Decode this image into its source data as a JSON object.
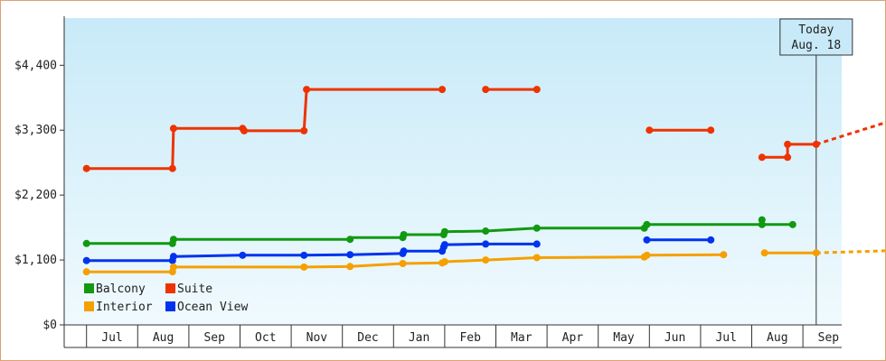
{
  "chart_data": {
    "type": "line",
    "x_axis": {
      "labels": [
        "Jul",
        "Aug",
        "Sep",
        "Oct",
        "Nov",
        "Dec",
        "Jan",
        "Feb",
        "Mar",
        "Apr",
        "May",
        "Jun",
        "Jul",
        "Aug",
        "Sep"
      ]
    },
    "y_axis": {
      "ticks": [
        {
          "value": 0,
          "label": "$0"
        },
        {
          "value": 1100,
          "label": "$1,100"
        },
        {
          "value": 2200,
          "label": "$2,200"
        },
        {
          "value": 3300,
          "label": "$3,300"
        },
        {
          "value": 4400,
          "label": "$4,400"
        }
      ],
      "ylim": [
        0,
        5200
      ]
    },
    "today": {
      "line1": "Today",
      "line2": "Aug. 18",
      "x": 13.76
    },
    "colors": {
      "Balcony": "#119911",
      "Suite": "#ee3300",
      "Interior": "#f5a000",
      "Ocean View": "#0033ee"
    },
    "legend": [
      "Balcony",
      "Suite",
      "Interior",
      "Ocean View"
    ],
    "series": [
      {
        "name": "Suite",
        "segments": [
          [
            [
              -0.5,
              2650
            ],
            [
              1.18,
              2650
            ],
            [
              1.2,
              3330
            ],
            [
              2.55,
              3330
            ],
            [
              2.58,
              3290
            ],
            [
              3.75,
              3290
            ],
            [
              3.8,
              3990
            ],
            [
              6.45,
              3990
            ]
          ],
          [
            [
              7.3,
              3990
            ],
            [
              8.3,
              3990
            ]
          ],
          [
            [
              10.5,
              3300
            ],
            [
              11.7,
              3300
            ]
          ],
          [
            [
              12.7,
              2840
            ],
            [
              13.2,
              2840
            ],
            [
              13.2,
              3060
            ],
            [
              13.76,
              3060
            ]
          ]
        ],
        "markers": [
          [
            -0.5,
            2650
          ],
          [
            1.18,
            2650
          ],
          [
            1.2,
            3330
          ],
          [
            2.55,
            3330
          ],
          [
            2.58,
            3290
          ],
          [
            3.75,
            3290
          ],
          [
            3.8,
            3990
          ],
          [
            6.45,
            3990
          ],
          [
            7.3,
            3990
          ],
          [
            8.3,
            3990
          ],
          [
            10.5,
            3300
          ],
          [
            11.7,
            3300
          ],
          [
            12.7,
            2840
          ],
          [
            13.2,
            2840
          ],
          [
            13.2,
            3060
          ],
          [
            13.76,
            3060
          ]
        ],
        "projection": [
          [
            13.76,
            3060
          ],
          [
            15.3,
            3480
          ]
        ]
      },
      {
        "name": "Balcony",
        "segments": [
          [
            [
              -0.5,
              1380
            ],
            [
              1.18,
              1380
            ],
            [
              1.2,
              1450
            ],
            [
              4.65,
              1450
            ],
            [
              4.67,
              1480
            ],
            [
              5.68,
              1480
            ],
            [
              5.7,
              1530
            ],
            [
              6.48,
              1530
            ],
            [
              6.5,
              1580
            ],
            [
              7.3,
              1590
            ],
            [
              8.3,
              1640
            ],
            [
              10.4,
              1640
            ],
            [
              10.45,
              1700
            ],
            [
              12.7,
              1700
            ],
            [
              12.7,
              1780
            ],
            [
              12.75,
              1700
            ],
            [
              13.3,
              1700
            ]
          ]
        ],
        "markers": [
          [
            -0.5,
            1380
          ],
          [
            1.18,
            1380
          ],
          [
            1.2,
            1450
          ],
          [
            4.65,
            1450
          ],
          [
            5.68,
            1480
          ],
          [
            5.7,
            1530
          ],
          [
            6.48,
            1530
          ],
          [
            6.5,
            1580
          ],
          [
            7.3,
            1590
          ],
          [
            8.3,
            1640
          ],
          [
            10.4,
            1640
          ],
          [
            10.45,
            1700
          ],
          [
            12.7,
            1700
          ],
          [
            12.7,
            1780
          ],
          [
            13.3,
            1700
          ]
        ]
      },
      {
        "name": "Ocean View",
        "segments": [
          [
            [
              -0.5,
              1090
            ],
            [
              1.18,
              1090
            ],
            [
              1.2,
              1160
            ],
            [
              2.55,
              1180
            ],
            [
              3.75,
              1180
            ],
            [
              4.65,
              1190
            ],
            [
              5.68,
              1210
            ],
            [
              5.7,
              1250
            ],
            [
              6.45,
              1250
            ],
            [
              6.48,
              1320
            ],
            [
              6.5,
              1360
            ],
            [
              7.3,
              1370
            ],
            [
              8.3,
              1370
            ]
          ],
          [
            [
              10.45,
              1440
            ],
            [
              11.7,
              1440
            ]
          ]
        ],
        "markers": [
          [
            -0.5,
            1090
          ],
          [
            1.18,
            1090
          ],
          [
            1.2,
            1160
          ],
          [
            2.55,
            1180
          ],
          [
            3.75,
            1180
          ],
          [
            4.65,
            1190
          ],
          [
            5.68,
            1210
          ],
          [
            5.7,
            1250
          ],
          [
            6.45,
            1250
          ],
          [
            6.48,
            1320
          ],
          [
            6.5,
            1360
          ],
          [
            7.3,
            1370
          ],
          [
            8.3,
            1370
          ],
          [
            10.45,
            1440
          ],
          [
            11.7,
            1440
          ]
        ]
      },
      {
        "name": "Interior",
        "segments": [
          [
            [
              -0.5,
              900
            ],
            [
              1.18,
              900
            ],
            [
              1.2,
              980
            ],
            [
              3.75,
              980
            ],
            [
              4.65,
              990
            ],
            [
              5.68,
              1040
            ],
            [
              6.45,
              1050
            ],
            [
              6.5,
              1070
            ],
            [
              7.3,
              1100
            ],
            [
              8.3,
              1140
            ],
            [
              10.4,
              1150
            ],
            [
              10.45,
              1180
            ],
            [
              11.95,
              1190
            ]
          ],
          [
            [
              12.75,
              1220
            ],
            [
              13.76,
              1220
            ]
          ]
        ],
        "markers": [
          [
            -0.5,
            900
          ],
          [
            1.18,
            900
          ],
          [
            1.2,
            980
          ],
          [
            3.75,
            980
          ],
          [
            4.65,
            990
          ],
          [
            5.68,
            1040
          ],
          [
            6.45,
            1050
          ],
          [
            6.5,
            1070
          ],
          [
            7.3,
            1100
          ],
          [
            8.3,
            1140
          ],
          [
            10.4,
            1150
          ],
          [
            10.45,
            1180
          ],
          [
            11.95,
            1190
          ],
          [
            12.75,
            1220
          ],
          [
            13.76,
            1220
          ]
        ],
        "projection": [
          [
            13.76,
            1220
          ],
          [
            15.3,
            1260
          ]
        ]
      }
    ]
  }
}
